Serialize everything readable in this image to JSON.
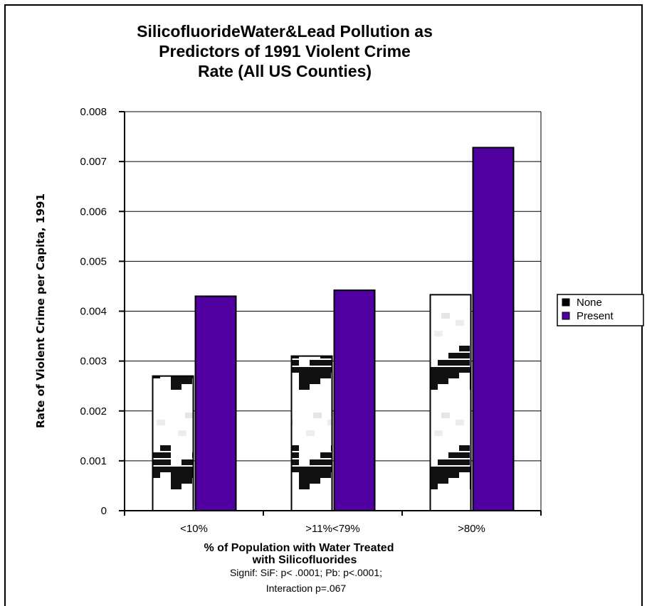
{
  "chart_data": {
    "type": "bar",
    "title_lines": [
      "SilicofluorideWater&Lead Pollution as",
      "Predictors of 1991 Violent Crime",
      "Rate (All US Counties)"
    ],
    "xlabel_lines": [
      "% of Population with Water Treated",
      "with Silicofluorides"
    ],
    "note_lines": [
      "Signif: SiF: p< .0001; Pb: p<.0001;",
      "Interaction p=.067"
    ],
    "ylabel": "Rate of Violent Crime per Capita, 1991",
    "categories": [
      "<10%",
      ">11%<79%",
      ">80%"
    ],
    "series": [
      {
        "name": "None",
        "values": [
          0.0027,
          0.0031,
          0.00433
        ],
        "color": "#000000"
      },
      {
        "name": "Present",
        "values": [
          0.0043,
          0.00442,
          0.00728
        ],
        "color": "#5000a0"
      }
    ],
    "ylim": [
      0,
      0.008
    ],
    "yticks": [
      "0",
      "0.001",
      "0.002",
      "0.003",
      "0.004",
      "0.005",
      "0.006",
      "0.007",
      "0.008"
    ],
    "grid": true,
    "legend_position": "right"
  }
}
